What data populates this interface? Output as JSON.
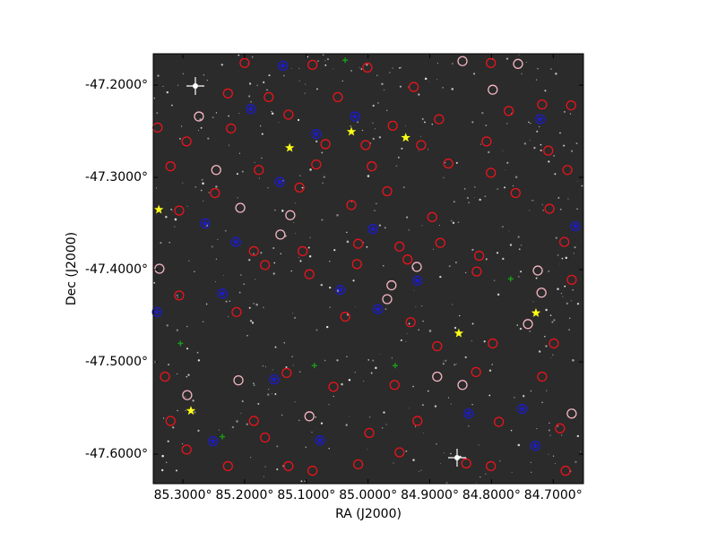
{
  "chart_data": {
    "type": "scatter",
    "xlabel": "RA (J2000)",
    "ylabel": "Dec (J2000)",
    "xlim": [
      85.348,
      84.651
    ],
    "ylim": [
      -47.632,
      -47.166
    ],
    "xticks": [
      {
        "value": 85.3,
        "label": "85.3000°"
      },
      {
        "value": 85.2,
        "label": "85.2000°"
      },
      {
        "value": 85.1,
        "label": "85.1000°"
      },
      {
        "value": 85.0,
        "label": "85.0000°"
      },
      {
        "value": 84.9,
        "label": "84.9000°"
      },
      {
        "value": 84.8,
        "label": "84.8000°"
      },
      {
        "value": 84.7,
        "label": "84.7000°"
      }
    ],
    "yticks": [
      {
        "value": -47.2,
        "label": "-47.2000°"
      },
      {
        "value": -47.3,
        "label": "-47.3000°"
      },
      {
        "value": -47.4,
        "label": "-47.4000°"
      },
      {
        "value": -47.5,
        "label": "-47.5000°"
      },
      {
        "value": -47.6,
        "label": "-47.6000°"
      }
    ],
    "background": "#2b2b2b",
    "series": [
      {
        "color": "#e8141c",
        "marker": "circle",
        "x": [
          85.2,
          85.09,
          85.001,
          84.801,
          85.227,
          85.161,
          84.926,
          85.049,
          85.129,
          84.96,
          84.885,
          84.772,
          84.718,
          84.671,
          85.341,
          85.294,
          85.222,
          85.069,
          85.004,
          84.914,
          84.808,
          84.708,
          85.32,
          85.177,
          85.084,
          84.994,
          84.87,
          84.801,
          84.677,
          85.306,
          85.248,
          85.111,
          85.027,
          84.969,
          84.896,
          84.761,
          84.706,
          85.185,
          85.106,
          85.016,
          84.949,
          84.883,
          84.82,
          84.682,
          85.306,
          85.167,
          85.095,
          85.018,
          84.936,
          84.824,
          84.67,
          85.213,
          85.037,
          84.931,
          84.888,
          84.798,
          84.699,
          85.329,
          85.132,
          85.056,
          84.957,
          84.825,
          84.718,
          85.32,
          85.185,
          84.998,
          84.92,
          84.788,
          84.689,
          85.294,
          85.167,
          85.129,
          85.09,
          85.016,
          84.949,
          84.841,
          84.801,
          84.68,
          85.227
        ],
        "y": [
          -47.176,
          -47.178,
          -47.181,
          -47.176,
          -47.209,
          -47.213,
          -47.202,
          -47.213,
          -47.232,
          -47.244,
          -47.237,
          -47.228,
          -47.221,
          -47.222,
          -47.246,
          -47.261,
          -47.247,
          -47.264,
          -47.265,
          -47.265,
          -47.261,
          -47.271,
          -47.288,
          -47.292,
          -47.286,
          -47.288,
          -47.285,
          -47.295,
          -47.292,
          -47.336,
          -47.317,
          -47.311,
          -47.33,
          -47.315,
          -47.343,
          -47.317,
          -47.334,
          -47.38,
          -47.38,
          -47.372,
          -47.375,
          -47.371,
          -47.385,
          -47.37,
          -47.428,
          -47.395,
          -47.405,
          -47.394,
          -47.389,
          -47.402,
          -47.411,
          -47.446,
          -47.451,
          -47.457,
          -47.483,
          -47.48,
          -47.48,
          -47.516,
          -47.512,
          -47.527,
          -47.525,
          -47.511,
          -47.516,
          -47.564,
          -47.564,
          -47.577,
          -47.564,
          -47.565,
          -47.572,
          -47.595,
          -47.582,
          -47.613,
          -47.618,
          -47.611,
          -47.598,
          -47.61,
          -47.613,
          -47.618,
          -47.613
        ]
      },
      {
        "color": "#f4b6c2",
        "marker": "circle",
        "x": [
          85.274,
          85.246,
          85.338,
          85.207,
          85.126,
          85.142,
          84.962,
          84.969,
          84.921,
          84.725,
          84.719,
          84.741,
          85.293,
          85.21,
          85.095,
          84.847,
          84.757,
          84.798,
          84.847,
          84.888,
          84.67
        ],
        "y": [
          -47.234,
          -47.292,
          -47.399,
          -47.333,
          -47.341,
          -47.362,
          -47.417,
          -47.432,
          -47.397,
          -47.401,
          -47.425,
          -47.459,
          -47.536,
          -47.52,
          -47.559,
          -47.174,
          -47.177,
          -47.205,
          -47.525,
          -47.516,
          -47.556
        ]
      },
      {
        "color": "#1c1cc8",
        "marker": "star-circle",
        "x": [
          85.138,
          85.19,
          85.021,
          85.084,
          85.143,
          85.264,
          85.214,
          84.992,
          85.236,
          85.045,
          84.92,
          85.342,
          84.984,
          85.152,
          84.837,
          84.75,
          85.251,
          85.078,
          84.729,
          84.721,
          84.664
        ],
        "y": [
          -47.179,
          -47.226,
          -47.234,
          -47.253,
          -47.305,
          -47.35,
          -47.37,
          -47.356,
          -47.426,
          -47.422,
          -47.412,
          -47.446,
          -47.443,
          -47.519,
          -47.556,
          -47.551,
          -47.586,
          -47.585,
          -47.591,
          -47.237,
          -47.353
        ]
      },
      {
        "color": "#1a9a1a",
        "marker": "plus",
        "x": [
          85.037,
          85.304,
          85.087,
          84.956,
          85.236,
          84.769
        ],
        "y": [
          -47.173,
          -47.48,
          -47.504,
          -47.504,
          -47.581,
          -47.41
        ]
      },
      {
        "color": "#ffff1a",
        "marker": "star",
        "x": [
          85.127,
          85.027,
          84.939,
          85.339,
          84.728,
          84.853,
          85.287
        ],
        "y": [
          -47.268,
          -47.2505,
          -47.257,
          -47.335,
          -47.447,
          -47.469,
          -47.553
        ]
      }
    ]
  }
}
